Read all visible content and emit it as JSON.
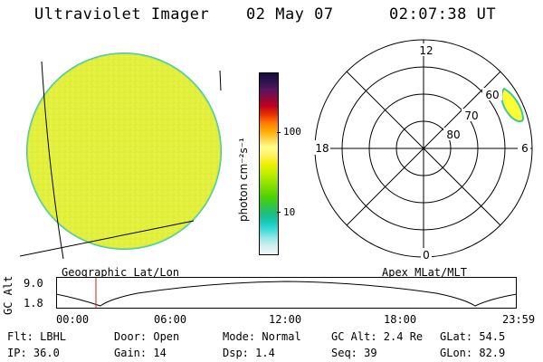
{
  "header": {
    "title": "Ultraviolet Imager",
    "date": "02 May 07",
    "time": "02:07:38 UT"
  },
  "colorbar": {
    "unit_label": "photon cm⁻²s⁻¹",
    "tick_100": "100",
    "tick_10": "10",
    "colors_top_to_bottom": [
      "#1a0a3c",
      "#2b1450",
      "#5a1460",
      "#8a0a3c",
      "#c0001e",
      "#e63200",
      "#ff7800",
      "#ffaa00",
      "#ffd24a",
      "#ffff8c",
      "#fff064",
      "#f0f000",
      "#c8f000",
      "#a0e600",
      "#78dc00",
      "#50d200",
      "#32c83c",
      "#1ebe78",
      "#14c8b4",
      "#3cdcdc",
      "#96e6e6",
      "#d2f0f0",
      "#f0f8f8"
    ]
  },
  "polar": {
    "label_top": "12",
    "label_left": "18",
    "label_right": "6",
    "label_bottom": "0",
    "ring_60": "60",
    "ring_70": "70",
    "ring_80": "80"
  },
  "labels": {
    "left_projection": "Geographic Lat/Lon",
    "right_projection": "Apex MLat/MLT"
  },
  "altitude": {
    "axis_label": "GC Alt",
    "tick_top": "9.0",
    "tick_bottom": "1.8",
    "time_ticks": [
      "00:00",
      "06:00",
      "12:00",
      "18:00",
      "23:59"
    ]
  },
  "status": {
    "flt": "Flt: LBHL",
    "ip": "IP: 36.0",
    "door": "Door: Open",
    "gain": "Gain: 14",
    "mode": "Mode: Normal",
    "dsp": "Dsp:    1.4",
    "gc_alt": "GC Alt: 2.4 Re",
    "seq": "Seq: 39",
    "glat": "GLat:  54.5",
    "glon": "GLon:  82.9"
  },
  "colors": {
    "disk_fill": "#e6f03c",
    "disk_edge": "#3cc8a0",
    "oval_fill": "#ffff32",
    "marker": "#c81e1e"
  }
}
